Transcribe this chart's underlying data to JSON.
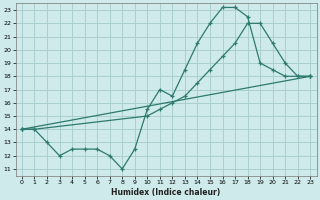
{
  "xlabel": "Humidex (Indice chaleur)",
  "bg_color": "#ceeaea",
  "grid_color": "#aacfcf",
  "line_color": "#2d7a6e",
  "xlim": [
    -0.5,
    23.5
  ],
  "ylim": [
    10.5,
    23.5
  ],
  "yticks": [
    11,
    12,
    13,
    14,
    15,
    16,
    17,
    18,
    19,
    20,
    21,
    22,
    23
  ],
  "xticks": [
    0,
    1,
    2,
    3,
    4,
    5,
    6,
    7,
    8,
    9,
    10,
    11,
    12,
    13,
    14,
    15,
    16,
    17,
    18,
    19,
    20,
    21,
    22,
    23
  ],
  "line1_x": [
    0,
    1,
    2,
    3,
    4,
    5,
    6,
    7,
    8,
    9,
    10,
    11,
    12,
    13,
    14,
    15,
    16,
    17,
    18,
    19,
    20,
    21,
    22,
    23
  ],
  "line1_y": [
    14,
    14,
    13,
    12,
    12.5,
    12.5,
    12.5,
    12,
    11,
    12.5,
    15.5,
    17,
    16.5,
    18.5,
    20.5,
    22,
    23.2,
    23.2,
    22.5,
    19,
    18.5,
    18,
    18,
    18
  ],
  "line2_x": [
    0,
    1,
    10,
    11,
    12,
    13,
    14,
    15,
    16,
    17,
    18,
    19,
    20,
    21,
    22,
    23
  ],
  "line2_y": [
    14,
    14,
    15,
    15.5,
    16,
    16.5,
    17.5,
    18.5,
    19.5,
    20.5,
    22,
    22,
    20.5,
    19,
    18,
    18
  ],
  "line3_x": [
    0,
    23
  ],
  "line3_y": [
    14,
    18
  ]
}
